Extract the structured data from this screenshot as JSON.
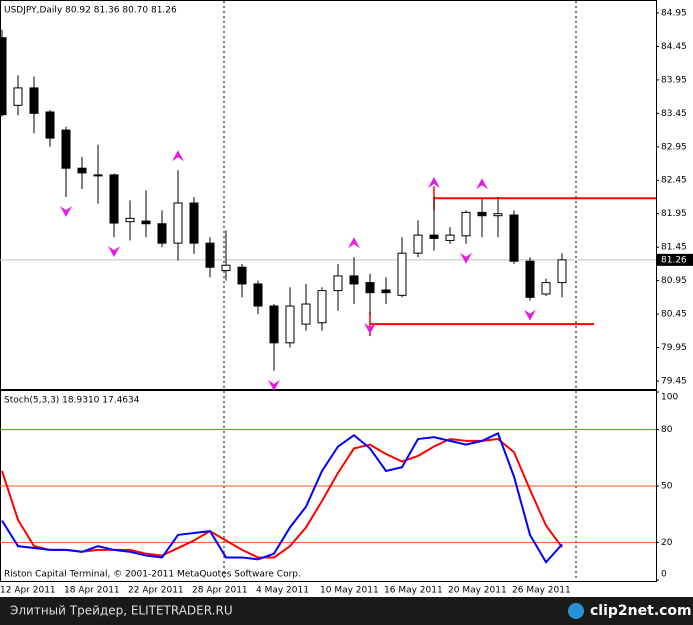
{
  "chart_data": [
    {
      "type": "candlestick",
      "title": "USDJPY,Daily  80.92 81.36 80.70 81.26",
      "categories": [
        "12 Apr 2011",
        null,
        null,
        null,
        "18 Apr 2011",
        null,
        null,
        null,
        "22 Apr 2011",
        null,
        null,
        null,
        "28 Apr 2011",
        null,
        null,
        null,
        "4 May 2011",
        null,
        null,
        null,
        "10 May 2011",
        null,
        null,
        null,
        "16 May 2011",
        null,
        null,
        null,
        "20 May 2011",
        null,
        null,
        null,
        "26 May 2011",
        null,
        null,
        null
      ],
      "open": [
        84.58,
        83.57,
        83.83,
        83.47,
        83.2,
        82.63,
        82.53,
        82.53,
        81.83,
        81.84,
        81.8,
        81.51,
        82.11,
        81.51,
        81.1,
        81.15,
        80.9,
        80.57,
        80.02,
        80.3,
        80.32,
        80.8,
        81.02,
        80.92,
        80.81,
        80.73,
        81.36,
        81.63,
        81.55,
        81.62,
        81.97,
        81.92,
        81.93,
        81.24,
        80.75,
        80.92
      ],
      "high": [
        84.7,
        84.02,
        84.0,
        83.5,
        83.25,
        82.8,
        82.98,
        82.55,
        82.15,
        82.3,
        82.0,
        82.6,
        82.2,
        81.6,
        81.7,
        81.2,
        80.95,
        80.6,
        80.85,
        80.9,
        80.85,
        81.2,
        81.3,
        81.05,
        81.0,
        81.6,
        81.85,
        82.2,
        81.75,
        82.0,
        82.18,
        82.2,
        82.0,
        81.3,
        80.98,
        81.36
      ],
      "low": [
        83.4,
        83.42,
        83.15,
        82.95,
        82.2,
        82.32,
        82.1,
        81.6,
        81.55,
        81.6,
        81.45,
        81.25,
        81.35,
        81.0,
        80.95,
        80.7,
        80.45,
        79.6,
        79.95,
        80.2,
        80.2,
        80.5,
        80.6,
        80.45,
        80.6,
        80.7,
        81.3,
        81.4,
        81.5,
        81.5,
        81.6,
        81.6,
        81.2,
        80.65,
        80.72,
        80.7
      ],
      "close": [
        83.43,
        83.83,
        83.45,
        83.08,
        82.63,
        82.56,
        82.52,
        81.81,
        81.88,
        81.8,
        81.51,
        82.11,
        81.51,
        81.15,
        81.18,
        80.9,
        80.57,
        80.02,
        80.57,
        80.6,
        80.8,
        81.02,
        80.9,
        80.77,
        80.77,
        81.36,
        81.63,
        81.58,
        81.63,
        81.97,
        81.92,
        81.95,
        81.24,
        80.7,
        80.92,
        81.26
      ],
      "color": "#000000",
      "ylim": [
        79.315,
        85.129
      ],
      "yticks": [
        84.95,
        84.45,
        83.95,
        83.45,
        82.95,
        82.45,
        81.95,
        81.45,
        80.95,
        80.45,
        79.95,
        79.45
      ],
      "current_price": 81.26,
      "fractals": {
        "color": "#e020e0",
        "up": [
          11,
          22,
          27,
          30
        ],
        "down": [
          4,
          7,
          17,
          23,
          29,
          33
        ]
      },
      "levels": {
        "color": "#ff0000",
        "lines": [
          {
            "value": 82.18,
            "from": 27
          },
          {
            "value": 80.3,
            "from": 23,
            "to": 37
          }
        ]
      },
      "period_separators": [
        14,
        36
      ]
    },
    {
      "type": "line",
      "title": "Stoch(5,3,3) 18.9310 17.4634",
      "series": [
        {
          "color": "#0000ff",
          "values": [
            31.6,
            18,
            17,
            16,
            16,
            15,
            18,
            16,
            15,
            13,
            12,
            24,
            25,
            26,
            12,
            12,
            11,
            14,
            28,
            39,
            58,
            71,
            77,
            70,
            58,
            60,
            75,
            76,
            74,
            72,
            74,
            78,
            55,
            24,
            9.5,
            18.931
          ]
        },
        {
          "color": "#ff0000",
          "values": [
            58,
            32,
            18,
            16,
            16,
            15,
            16,
            16,
            16,
            14,
            13,
            17,
            21,
            26,
            21,
            16,
            12,
            12,
            18,
            28,
            42,
            57,
            70,
            72,
            67,
            63,
            66,
            71,
            75,
            74,
            74,
            75,
            68,
            48,
            29,
            17.4634
          ]
        }
      ],
      "ylim": [
        0,
        100
      ],
      "yticks": [
        100,
        80,
        50,
        20,
        0
      ],
      "levels": {
        "color": "#e0601c",
        "values": [
          80,
          50,
          20
        ]
      }
    }
  ],
  "watermark": "Riston Capital Terminal, © 2001-2011 MetaQuotes Software Corp.",
  "footer": {
    "left": "Элитный Трейдер, ELITETRADER.RU",
    "logo": "clip2net.com"
  }
}
